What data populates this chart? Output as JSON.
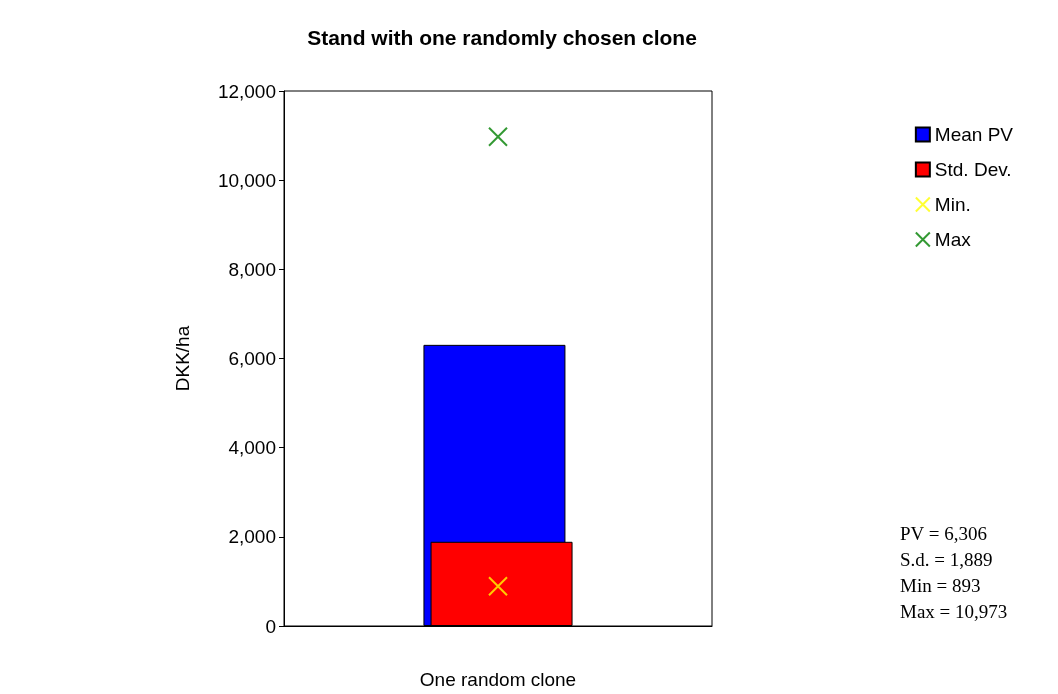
{
  "chart_data": {
    "type": "bar",
    "title": "Stand with one randomly chosen clone",
    "xlabel": "One random clone",
    "ylabel": "DKK/ha",
    "categories": [
      null
    ],
    "series": [
      {
        "name": "Mean PV",
        "color": "#0000ff",
        "values": [
          6306
        ]
      },
      {
        "name": "Std. Dev.",
        "color": "#ff0000",
        "values": [
          1889
        ]
      },
      {
        "name": "Min.",
        "type": "scatter",
        "marker": "cross",
        "color": "#ffff00",
        "x": [
          null
        ],
        "values": [
          893
        ]
      },
      {
        "name": "Max",
        "type": "scatter",
        "marker": "cross",
        "color": "#008000",
        "x": [
          null
        ],
        "values": [
          10973
        ]
      }
    ],
    "ylim": [
      0,
      12000
    ],
    "yticks": [
      {
        "value": 0,
        "label": "0"
      },
      {
        "value": 2000,
        "label": "2,000"
      },
      {
        "value": 4000,
        "label": "4,000"
      },
      {
        "value": 6000,
        "label": "6,000"
      },
      {
        "value": 8000,
        "label": "8,000"
      },
      {
        "value": 10000,
        "label": "10,000"
      },
      {
        "value": 12000,
        "label": "12,000"
      }
    ],
    "grid": false,
    "legend": "right",
    "annotations": [
      "PV = 6,306",
      "S.d. = 1,889",
      "Min = 893",
      "Max = 10,973"
    ]
  }
}
